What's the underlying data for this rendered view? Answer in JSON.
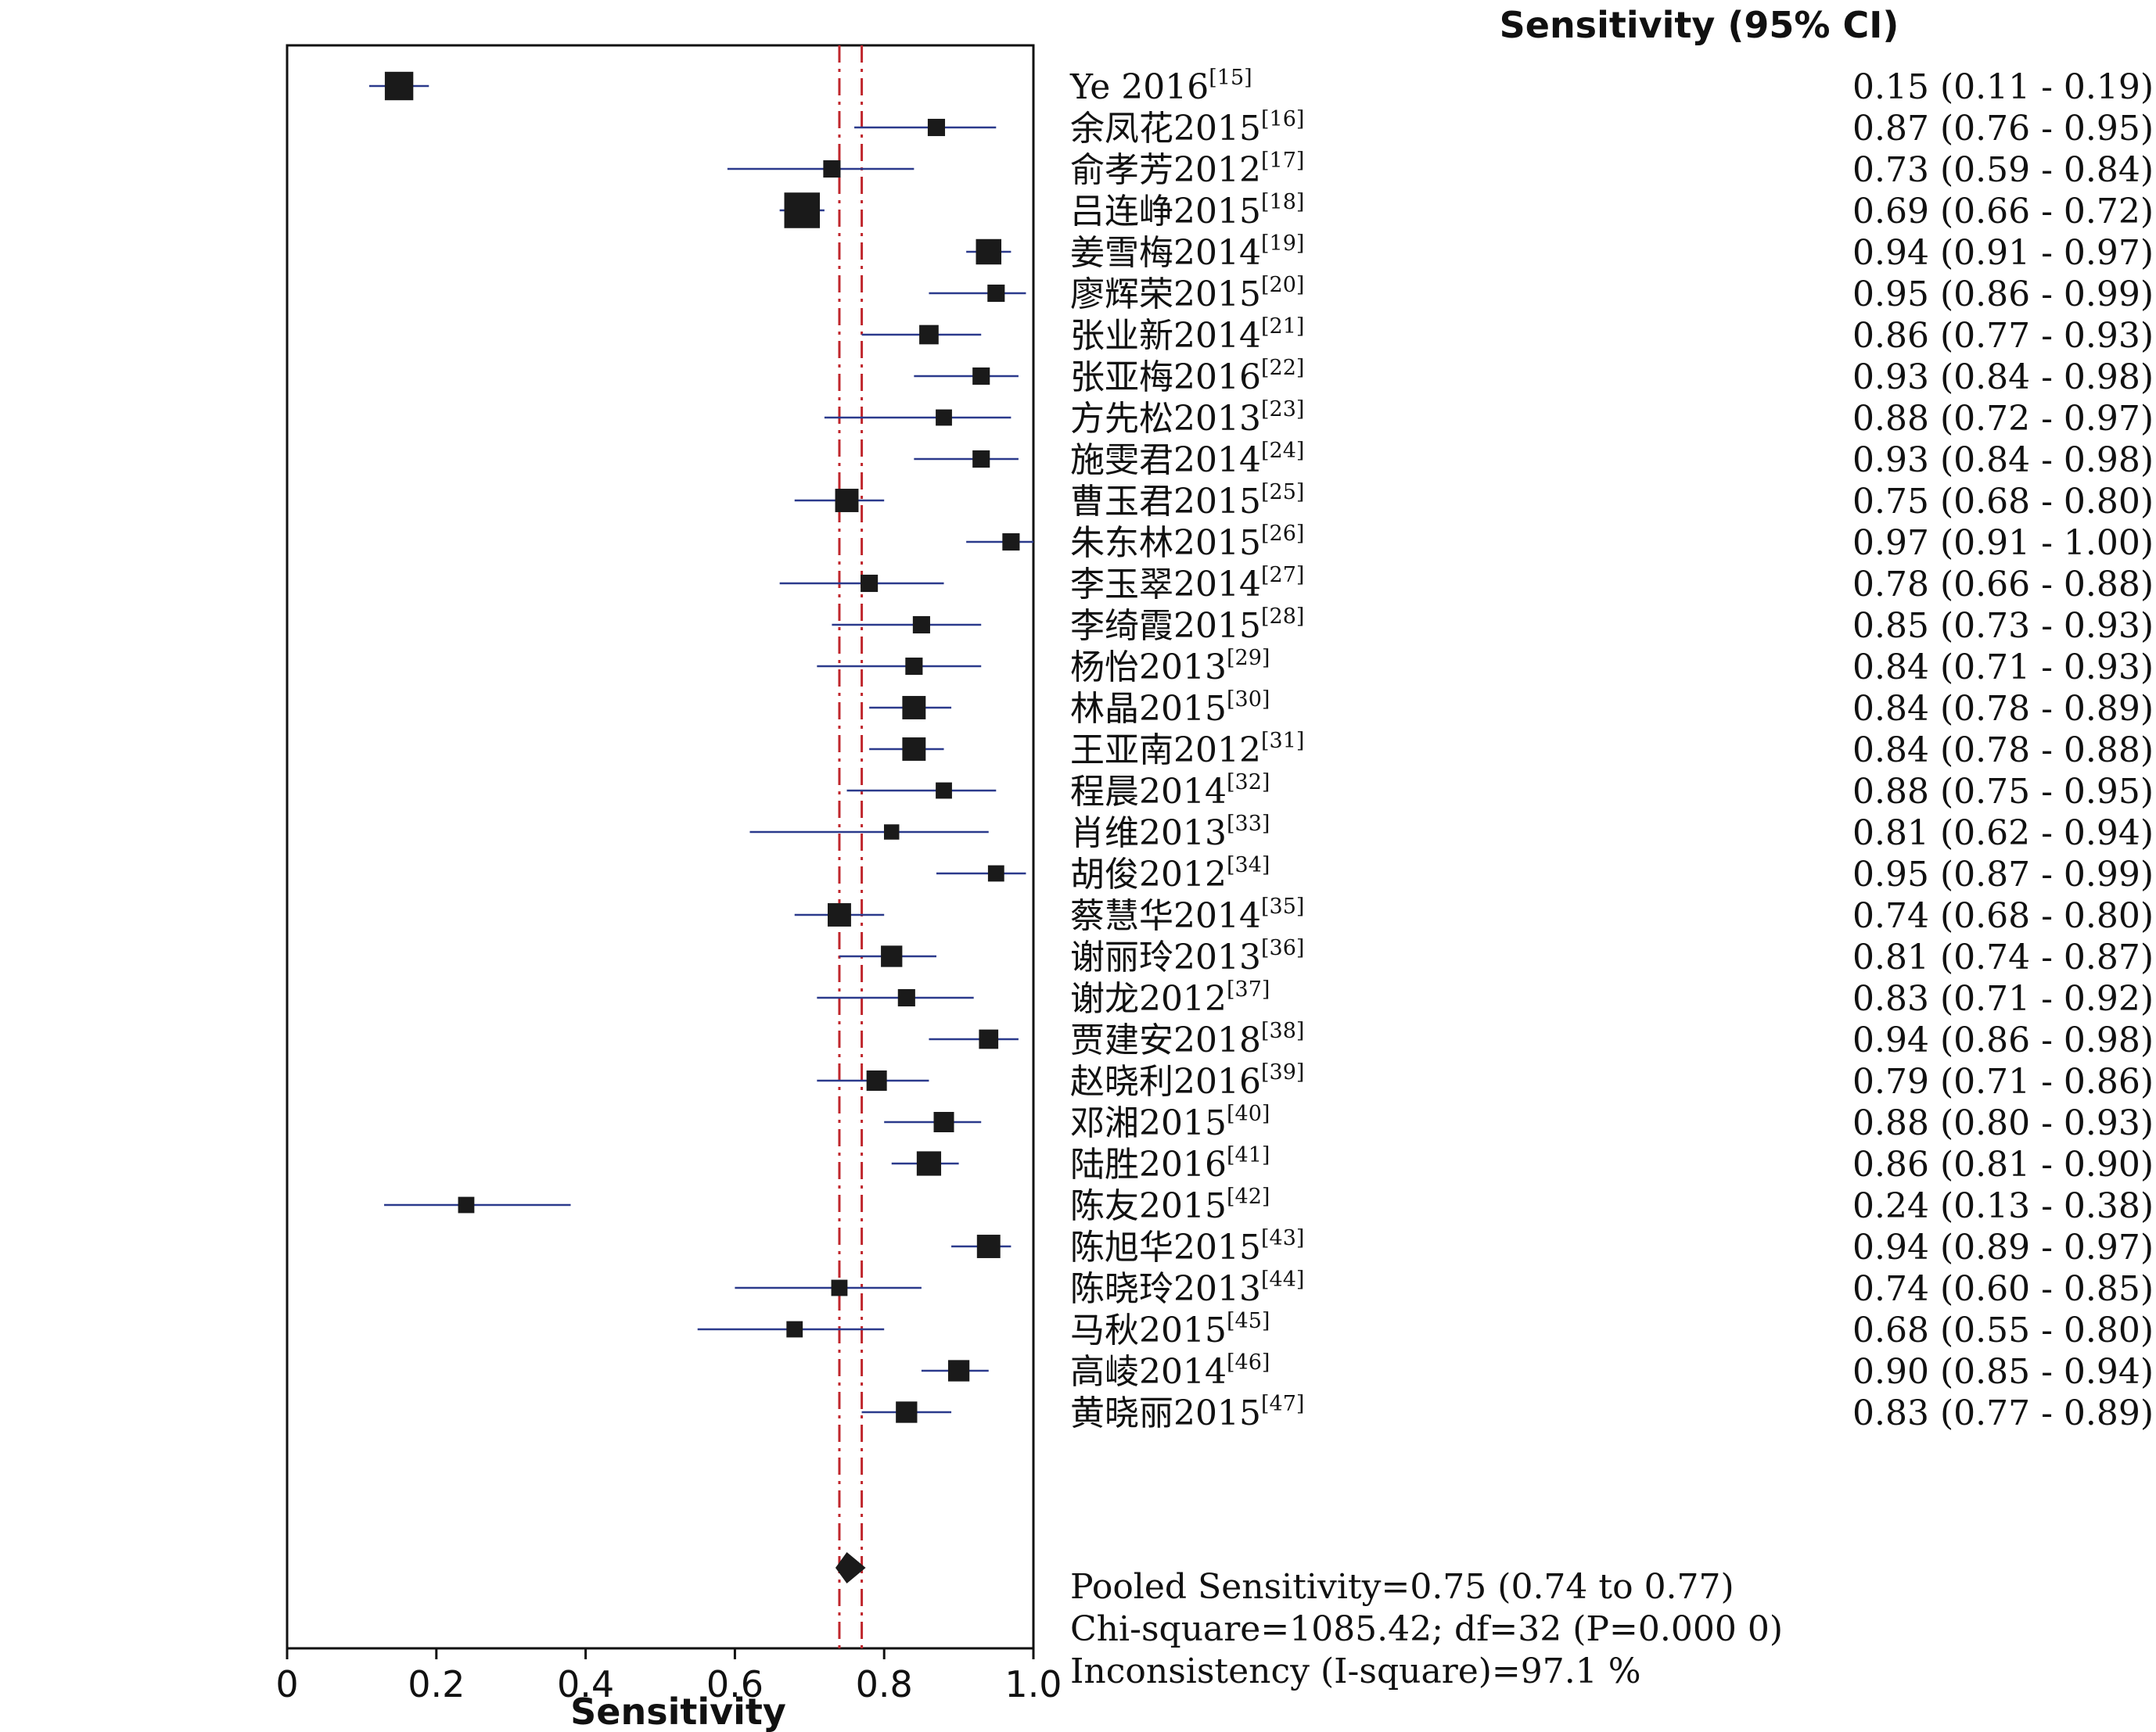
{
  "chart_data": {
    "type": "forest",
    "column_header": "Sensitivity (95% CI)",
    "xlabel": "Sensitivity",
    "xlim": [
      0,
      1.0
    ],
    "x_ticks": [
      "0",
      "0.2",
      "0.4",
      "0.6",
      "0.8",
      "1.0"
    ],
    "x_tick_values": [
      0,
      0.2,
      0.4,
      0.6,
      0.8,
      1.0
    ],
    "pooled": {
      "estimate": 0.75,
      "lower": 0.74,
      "upper": 0.77
    },
    "reference_line_style": "dash-dot",
    "ci_line_color": "#2b3a8c",
    "reference_line_color": "#c0272d",
    "marker_color": "#1a1a1a",
    "studies": [
      {
        "label": "Ye 2016",
        "ref": "[15]",
        "est": 0.15,
        "lo": 0.11,
        "hi": 0.19,
        "ci_text": "0.15 (0.11 - 0.19)",
        "weight": 1.4
      },
      {
        "label": "余凤花2015",
        "ref": "[16]",
        "est": 0.87,
        "lo": 0.76,
        "hi": 0.95,
        "ci_text": "0.87 (0.76 - 0.95)",
        "weight": 0.85
      },
      {
        "label": "俞孝芳2012",
        "ref": "[17]",
        "est": 0.73,
        "lo": 0.59,
        "hi": 0.84,
        "ci_text": "0.73 (0.59 - 0.84)",
        "weight": 0.85
      },
      {
        "label": "吕连峥2015",
        "ref": "[18]",
        "est": 0.69,
        "lo": 0.66,
        "hi": 0.72,
        "ci_text": "0.69 (0.66 - 0.72)",
        "weight": 1.75
      },
      {
        "label": "姜雪梅2014",
        "ref": "[19]",
        "est": 0.94,
        "lo": 0.91,
        "hi": 0.97,
        "ci_text": "0.94 (0.91 - 0.97)",
        "weight": 1.25
      },
      {
        "label": "廖辉荣2015",
        "ref": "[20]",
        "est": 0.95,
        "lo": 0.86,
        "hi": 0.99,
        "ci_text": "0.95 (0.86 - 0.99)",
        "weight": 0.85
      },
      {
        "label": "张业新2014",
        "ref": "[21]",
        "est": 0.86,
        "lo": 0.77,
        "hi": 0.93,
        "ci_text": "0.86 (0.77 - 0.93)",
        "weight": 0.95
      },
      {
        "label": "张亚梅2016",
        "ref": "[22]",
        "est": 0.93,
        "lo": 0.84,
        "hi": 0.98,
        "ci_text": "0.93 (0.84 - 0.98)",
        "weight": 0.85
      },
      {
        "label": "方先松2013",
        "ref": "[23]",
        "est": 0.88,
        "lo": 0.72,
        "hi": 0.97,
        "ci_text": "0.88 (0.72 - 0.97)",
        "weight": 0.8
      },
      {
        "label": "施雯君2014",
        "ref": "[24]",
        "est": 0.93,
        "lo": 0.84,
        "hi": 0.98,
        "ci_text": "0.93 (0.84 - 0.98)",
        "weight": 0.85
      },
      {
        "label": "曹玉君2015",
        "ref": "[25]",
        "est": 0.75,
        "lo": 0.68,
        "hi": 0.8,
        "ci_text": "0.75 (0.68 - 0.80)",
        "weight": 1.15
      },
      {
        "label": "朱东林2015",
        "ref": "[26]",
        "est": 0.97,
        "lo": 0.91,
        "hi": 1.0,
        "ci_text": "0.97 (0.91 - 1.00)",
        "weight": 0.85
      },
      {
        "label": "李玉翠2014",
        "ref": "[27]",
        "est": 0.78,
        "lo": 0.66,
        "hi": 0.88,
        "ci_text": "0.78 (0.66 - 0.88)",
        "weight": 0.85
      },
      {
        "label": "李绮霞2015",
        "ref": "[28]",
        "est": 0.85,
        "lo": 0.73,
        "hi": 0.93,
        "ci_text": "0.85 (0.73 - 0.93)",
        "weight": 0.85
      },
      {
        "label": "杨怡2013",
        "ref": "[29]",
        "est": 0.84,
        "lo": 0.71,
        "hi": 0.93,
        "ci_text": "0.84 (0.71 - 0.93)",
        "weight": 0.85
      },
      {
        "label": "林晶2015",
        "ref": "[30]",
        "est": 0.84,
        "lo": 0.78,
        "hi": 0.89,
        "ci_text": "0.84 (0.78 - 0.89)",
        "weight": 1.15
      },
      {
        "label": "王亚南2012",
        "ref": "[31]",
        "est": 0.84,
        "lo": 0.78,
        "hi": 0.88,
        "ci_text": "0.84 (0.78 - 0.88)",
        "weight": 1.15
      },
      {
        "label": "程晨2014",
        "ref": "[32]",
        "est": 0.88,
        "lo": 0.75,
        "hi": 0.95,
        "ci_text": "0.88 (0.75 - 0.95)",
        "weight": 0.8
      },
      {
        "label": "肖维2013",
        "ref": "[33]",
        "est": 0.81,
        "lo": 0.62,
        "hi": 0.94,
        "ci_text": "0.81 (0.62 - 0.94)",
        "weight": 0.75
      },
      {
        "label": "胡俊2012",
        "ref": "[34]",
        "est": 0.95,
        "lo": 0.87,
        "hi": 0.99,
        "ci_text": "0.95 (0.87 - 0.99)",
        "weight": 0.8
      },
      {
        "label": "蔡慧华2014",
        "ref": "[35]",
        "est": 0.74,
        "lo": 0.68,
        "hi": 0.8,
        "ci_text": "0.74 (0.68 - 0.80)",
        "weight": 1.15
      },
      {
        "label": "谢丽玲2013",
        "ref": "[36]",
        "est": 0.81,
        "lo": 0.74,
        "hi": 0.87,
        "ci_text": "0.81 (0.74 - 0.87)",
        "weight": 1.05
      },
      {
        "label": "谢龙2012",
        "ref": "[37]",
        "est": 0.83,
        "lo": 0.71,
        "hi": 0.92,
        "ci_text": "0.83 (0.71 - 0.92)",
        "weight": 0.85
      },
      {
        "label": "贾建安2018",
        "ref": "[38]",
        "est": 0.94,
        "lo": 0.86,
        "hi": 0.98,
        "ci_text": "0.94 (0.86 - 0.98)",
        "weight": 0.95
      },
      {
        "label": "赵晓利2016",
        "ref": "[39]",
        "est": 0.79,
        "lo": 0.71,
        "hi": 0.86,
        "ci_text": "0.79 (0.71 - 0.86)",
        "weight": 1.0
      },
      {
        "label": "邓湘2015",
        "ref": "[40]",
        "est": 0.88,
        "lo": 0.8,
        "hi": 0.93,
        "ci_text": "0.88 (0.80 - 0.93)",
        "weight": 1.0
      },
      {
        "label": "陆胜2016",
        "ref": "[41]",
        "est": 0.86,
        "lo": 0.81,
        "hi": 0.9,
        "ci_text": "0.86 (0.81 - 0.90)",
        "weight": 1.2
      },
      {
        "label": "陈友2015",
        "ref": "[42]",
        "est": 0.24,
        "lo": 0.13,
        "hi": 0.38,
        "ci_text": "0.24 (0.13 - 0.38)",
        "weight": 0.8
      },
      {
        "label": "陈旭华2015",
        "ref": "[43]",
        "est": 0.94,
        "lo": 0.89,
        "hi": 0.97,
        "ci_text": "0.94 (0.89 - 0.97)",
        "weight": 1.15
      },
      {
        "label": "陈晓玲2013",
        "ref": "[44]",
        "est": 0.74,
        "lo": 0.6,
        "hi": 0.85,
        "ci_text": "0.74 (0.60 - 0.85)",
        "weight": 0.8
      },
      {
        "label": "马秋2015",
        "ref": "[45]",
        "est": 0.68,
        "lo": 0.55,
        "hi": 0.8,
        "ci_text": "0.68 (0.55 - 0.80)",
        "weight": 0.8
      },
      {
        "label": "高崚2014",
        "ref": "[46]",
        "est": 0.9,
        "lo": 0.85,
        "hi": 0.94,
        "ci_text": "0.90 (0.85 - 0.94)",
        "weight": 1.05
      },
      {
        "label": "黄晓丽2015",
        "ref": "[47]",
        "est": 0.83,
        "lo": 0.77,
        "hi": 0.89,
        "ci_text": "0.83 (0.77 - 0.89)",
        "weight": 1.05
      }
    ],
    "footer": [
      "Pooled Sensitivity=0.75 (0.74 to 0.77)",
      "Chi-square=1085.42; df=32 (P=0.000 0)",
      "Inconsistency (I-square)=97.1 %"
    ]
  }
}
